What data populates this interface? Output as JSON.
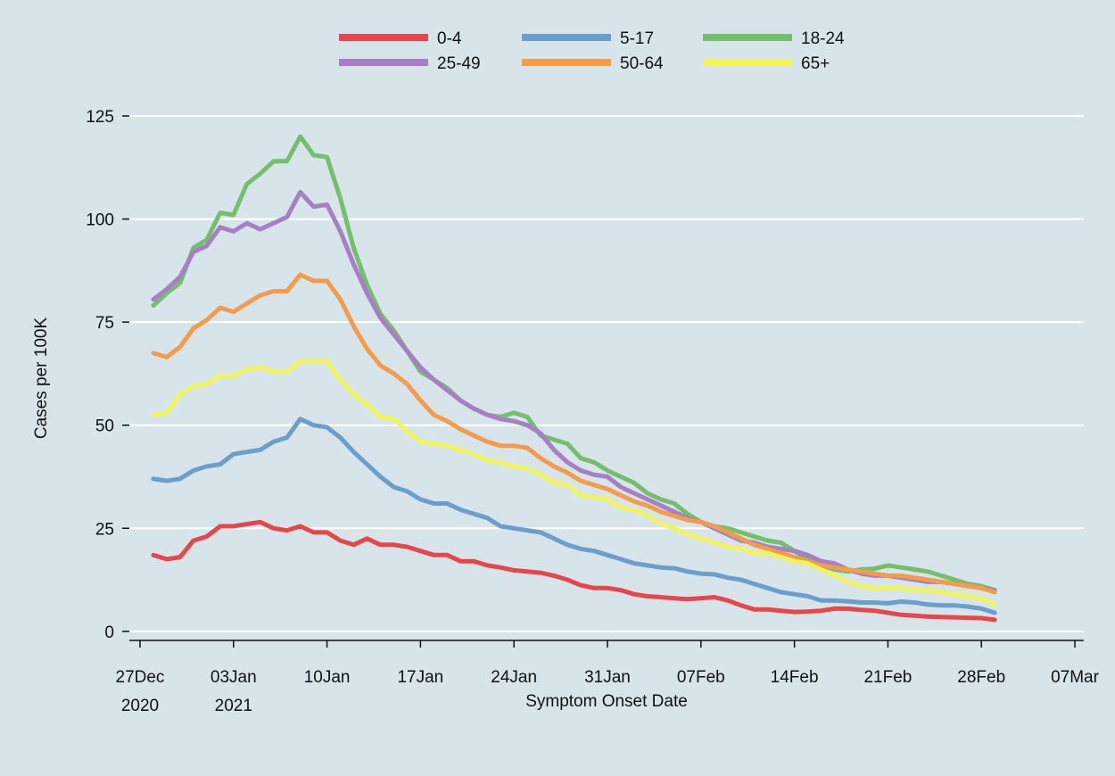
{
  "chart_data": {
    "type": "line",
    "y_label": "Cases per 100K",
    "x_label": "Symptom Onset Date",
    "x": [
      "2020-12-28",
      "2020-12-29",
      "2020-12-30",
      "2020-12-31",
      "2021-01-01",
      "2021-01-02",
      "2021-01-03",
      "2021-01-04",
      "2021-01-05",
      "2021-01-06",
      "2021-01-07",
      "2021-01-08",
      "2021-01-09",
      "2021-01-10",
      "2021-01-11",
      "2021-01-12",
      "2021-01-13",
      "2021-01-14",
      "2021-01-15",
      "2021-01-16",
      "2021-01-17",
      "2021-01-18",
      "2021-01-19",
      "2021-01-20",
      "2021-01-21",
      "2021-01-22",
      "2021-01-23",
      "2021-01-24",
      "2021-01-25",
      "2021-01-26",
      "2021-01-27",
      "2021-01-28",
      "2021-01-29",
      "2021-01-30",
      "2021-01-31",
      "2021-02-01",
      "2021-02-02",
      "2021-02-03",
      "2021-02-04",
      "2021-02-05",
      "2021-02-06",
      "2021-02-07",
      "2021-02-08",
      "2021-02-09",
      "2021-02-10",
      "2021-02-11",
      "2021-02-12",
      "2021-02-13",
      "2021-02-14",
      "2021-02-15",
      "2021-02-16",
      "2021-02-17",
      "2021-02-18",
      "2021-02-19",
      "2021-02-20",
      "2021-02-21",
      "2021-02-22",
      "2021-02-23",
      "2021-02-24",
      "2021-02-25",
      "2021-02-26",
      "2021-02-27",
      "2021-02-28",
      "2021-03-01"
    ],
    "series": [
      {
        "name": "0-4",
        "color": "#e5474a",
        "values": [
          18.5,
          17.5,
          18,
          22,
          23,
          25.5,
          25.5,
          26,
          26.5,
          25,
          24.5,
          25.5,
          24,
          24,
          22,
          21,
          22.5,
          21,
          21,
          20.5,
          19.5,
          18.5,
          18.5,
          17,
          17,
          16,
          15.5,
          14.8,
          14.5,
          14.2,
          13.5,
          12.5,
          11.2,
          10.5,
          10.5,
          10,
          9,
          8.5,
          8.3,
          8,
          7.8,
          8,
          8.3,
          7.5,
          6.3,
          5.3,
          5.3,
          5,
          4.7,
          4.8,
          5,
          5.5,
          5.5,
          5.2,
          5,
          4.5,
          4,
          3.8,
          3.6,
          3.5,
          3.4,
          3.3,
          3.2,
          2.8
        ]
      },
      {
        "name": "5-17",
        "color": "#6a9fcc",
        "values": [
          37,
          36.5,
          37,
          39,
          40,
          40.5,
          43,
          43.5,
          44,
          46,
          47,
          51.5,
          50,
          49.5,
          47,
          43.5,
          40.5,
          37.5,
          35,
          34,
          32,
          31,
          31,
          29.5,
          28.5,
          27.5,
          25.5,
          25,
          24.5,
          24,
          22.5,
          21,
          20,
          19.5,
          18.5,
          17.5,
          16.5,
          16,
          15.5,
          15.3,
          14.5,
          14,
          13.8,
          13,
          12.5,
          11.5,
          10.5,
          9.5,
          9,
          8.5,
          7.5,
          7.5,
          7.3,
          7,
          7,
          6.8,
          7.2,
          7,
          6.5,
          6.3,
          6.3,
          6,
          5.5,
          4.5
        ]
      },
      {
        "name": "18-24",
        "color": "#73bf6b",
        "values": [
          79,
          82,
          84.5,
          93,
          95,
          101.5,
          101,
          108.5,
          111,
          114,
          114,
          120,
          115.5,
          115,
          105,
          93,
          84,
          77,
          73,
          68,
          63,
          61,
          59,
          56,
          54,
          52.5,
          52,
          53,
          52,
          47.5,
          46.5,
          45.5,
          42,
          41,
          39,
          37.5,
          36,
          33.5,
          32,
          31,
          28.5,
          26.5,
          25.5,
          25,
          24,
          23,
          22,
          21.5,
          19.5,
          17.5,
          16,
          15,
          14.5,
          15,
          15.2,
          16,
          15.5,
          15,
          14.5,
          13.5,
          12.5,
          11.5,
          11,
          10
        ]
      },
      {
        "name": "25-49",
        "color": "#a67fc5",
        "values": [
          80.5,
          83,
          86,
          92,
          93.5,
          98,
          97,
          99,
          97.5,
          99,
          100.5,
          106.5,
          103,
          103.5,
          97,
          89,
          82,
          76,
          72,
          68,
          64,
          61,
          58.5,
          56,
          54,
          52.5,
          51.5,
          51,
          50,
          48,
          44,
          41,
          39,
          38,
          37.5,
          35,
          33.5,
          32,
          30.5,
          29,
          27.5,
          26.5,
          25,
          23.5,
          22,
          21.5,
          20.5,
          20,
          19.5,
          18.5,
          17,
          16.5,
          15,
          14,
          13.5,
          13.5,
          13,
          12.5,
          12,
          12,
          11.5,
          11,
          10.5,
          10
        ]
      },
      {
        "name": "50-64",
        "color": "#f39c4b",
        "values": [
          67.5,
          66.5,
          69,
          73.5,
          75.5,
          78.5,
          77.5,
          79.5,
          81.5,
          82.5,
          82.5,
          86.5,
          85,
          85,
          80.5,
          74,
          68.5,
          64.5,
          62.5,
          60,
          56,
          52.5,
          51,
          49,
          47.5,
          46,
          45,
          45,
          44.5,
          42,
          40,
          38.5,
          36.5,
          35.5,
          34.5,
          33,
          31.5,
          30.5,
          29,
          28,
          27,
          26.5,
          25.5,
          24,
          22.5,
          21,
          20,
          19,
          18,
          17,
          16,
          15.5,
          15,
          14.5,
          14,
          13.5,
          13.5,
          13,
          12.5,
          12,
          11.5,
          11,
          10.5,
          9.5
        ]
      },
      {
        "name": "65+",
        "color": "#f1f45b",
        "values": [
          52.5,
          53,
          57.5,
          59.5,
          60,
          62,
          62,
          63.5,
          64,
          63,
          63,
          65.5,
          65.5,
          65.5,
          61,
          57.5,
          55,
          52,
          51.5,
          48.5,
          46,
          45.5,
          45,
          44,
          43,
          41.5,
          41,
          40,
          39.5,
          38,
          36,
          35.5,
          33,
          32.5,
          32,
          30,
          29.5,
          28,
          26,
          25,
          23.5,
          22.5,
          21.5,
          20.5,
          20,
          19,
          19,
          18,
          17,
          16.5,
          15,
          13.5,
          12,
          11,
          10.5,
          10.5,
          10.5,
          10,
          10,
          9.5,
          9,
          8.5,
          8,
          6.5
        ]
      }
    ],
    "xlim": [
      "2020-12-26",
      "2021-03-08"
    ],
    "xticks": [
      {
        "value": "2020-12-27",
        "label": [
          "27Dec",
          "2020"
        ]
      },
      {
        "value": "2021-01-03",
        "label": [
          "03Jan",
          "2021"
        ]
      },
      {
        "value": "2021-01-10",
        "label": "10Jan"
      },
      {
        "value": "2021-01-17",
        "label": "17Jan"
      },
      {
        "value": "2021-01-24",
        "label": "24Jan"
      },
      {
        "value": "2021-01-31",
        "label": "31Jan"
      },
      {
        "value": "2021-02-07",
        "label": "07Feb"
      },
      {
        "value": "2021-02-14",
        "label": "14Feb"
      },
      {
        "value": "2021-02-21",
        "label": "21Feb"
      },
      {
        "value": "2021-02-28",
        "label": "28Feb"
      },
      {
        "value": "2021-03-07",
        "label": "07Mar"
      }
    ],
    "ylim": [
      -2.2,
      125
    ],
    "yticks": [
      0,
      25,
      50,
      75,
      100,
      125
    ],
    "grid": true,
    "legend": "top"
  }
}
